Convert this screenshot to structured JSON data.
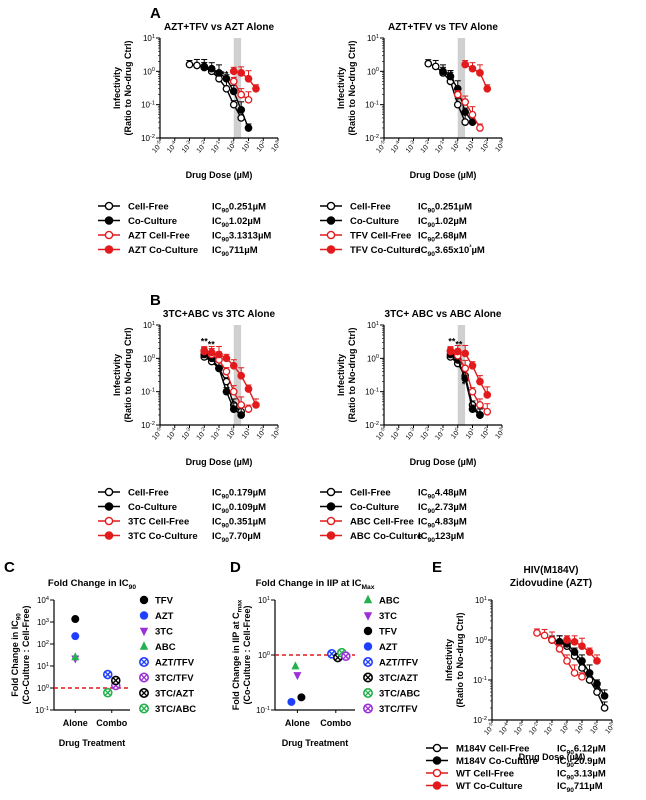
{
  "figure": {
    "panels": {
      "A": {
        "letter": "A",
        "left_title": "AZT+TFV vs AZT Alone",
        "right_title": "AZT+TFV vs TFV Alone"
      },
      "B": {
        "letter": "B",
        "left_title": "3TC+ABC vs 3TC Alone",
        "right_title": "3TC+ ABC vs ABC Alone"
      },
      "C": {
        "letter": "C",
        "title": "Fold Change in IC90"
      },
      "D": {
        "letter": "D",
        "title": "Fold Change in IIP at ICMax"
      },
      "E": {
        "letter": "E",
        "title_line1": "HIV(M184V)",
        "title_line2": "Zidovudine (AZT)"
      }
    }
  },
  "chart_data": [
    {
      "id": "A-left",
      "type": "line",
      "title": "AZT+TFV vs AZT Alone",
      "xlabel": "Drug Dose (µM)",
      "ylabel": "Infectivity (Ratio to No-drug Ctrl)",
      "xscale": "log",
      "yscale": "log",
      "xlim": [
        1e-05,
        1000
      ],
      "ylim": [
        0.01,
        10
      ],
      "shaded_x": [
        1,
        3.16
      ],
      "annotations": [
        {
          "text": "**",
          "x": 0.25,
          "y": 0.5
        }
      ],
      "series": [
        {
          "name": "Cell-Free",
          "color": "#000000",
          "filled": false,
          "ic90": "0.251µM",
          "x": [
            0.001,
            0.0032,
            0.01,
            0.032,
            0.1,
            0.32,
            1.0,
            3.2
          ],
          "y": [
            1.6,
            1.5,
            1.3,
            1.0,
            0.6,
            0.3,
            0.1,
            0.04
          ]
        },
        {
          "name": "Co-Culture",
          "color": "#000000",
          "filled": true,
          "ic90": "1.02µM",
          "x": [
            0.01,
            0.032,
            0.1,
            0.32,
            1.0,
            3.2,
            10
          ],
          "y": [
            1.4,
            1.2,
            0.9,
            0.6,
            0.25,
            0.07,
            0.02
          ]
        },
        {
          "name": "AZT Cell-Free",
          "color": "#e31a1c",
          "filled": false,
          "ic90": "3.1313µM",
          "x": [
            1.0,
            3.2,
            10
          ],
          "y": [
            0.5,
            0.2,
            0.14
          ]
        },
        {
          "name": "AZT Co-Culture",
          "color": "#e31a1c",
          "filled": true,
          "ic90": "711µM",
          "x": [
            1.0,
            3.2,
            10,
            32
          ],
          "y": [
            1.0,
            0.9,
            0.6,
            0.3
          ]
        }
      ]
    },
    {
      "id": "A-right",
      "type": "line",
      "title": "AZT+TFV vs TFV Alone",
      "xlabel": "Drug Dose (µM)",
      "ylabel": "Infectivity (Ratio to No-drug Ctrl)",
      "xscale": "log",
      "yscale": "log",
      "xlim": [
        1e-05,
        1000
      ],
      "ylim": [
        0.01,
        10
      ],
      "shaded_x": [
        1,
        3.16
      ],
      "annotations": [
        {
          "text": "**",
          "x": 0.3,
          "y": 0.5
        }
      ],
      "series": [
        {
          "name": "Cell-Free",
          "color": "#000000",
          "filled": false,
          "ic90": "0.251µM",
          "x": [
            0.01,
            0.032,
            0.1,
            0.32,
            1.0,
            3.2
          ],
          "y": [
            1.7,
            1.4,
            0.9,
            0.5,
            0.1,
            0.03
          ]
        },
        {
          "name": "Co-Culture",
          "color": "#000000",
          "filled": true,
          "ic90": "1.02µM",
          "x": [
            0.1,
            0.32,
            1.0,
            3.2,
            10
          ],
          "y": [
            1.0,
            0.7,
            0.3,
            0.06,
            0.03
          ]
        },
        {
          "name": "TFV Cell-Free",
          "color": "#e31a1c",
          "filled": false,
          "ic90": "2.68µM",
          "x": [
            1.0,
            3.2,
            10,
            32
          ],
          "y": [
            0.2,
            0.12,
            0.05,
            0.02
          ]
        },
        {
          "name": "TFV Co-Culture",
          "color": "#e31a1c",
          "filled": true,
          "ic90": "3.65x10³µM",
          "x": [
            3.2,
            10,
            32,
            100
          ],
          "y": [
            1.6,
            1.2,
            0.9,
            0.3
          ]
        }
      ]
    },
    {
      "id": "B-left",
      "type": "line",
      "title": "3TC+ABC vs 3TC Alone",
      "xlabel": "Drug Dose (µM)",
      "ylabel": "Infectivity (Ratio to No-drug Ctrl)",
      "xscale": "log",
      "yscale": "log",
      "xlim": [
        1e-05,
        1000
      ],
      "ylim": [
        0.01,
        10
      ],
      "shaded_x": [
        1,
        3.16
      ],
      "annotations": [
        {
          "text": "**",
          "x": 0.01,
          "y": 2.0
        },
        {
          "text": "**",
          "x": 0.03,
          "y": 1.6
        }
      ],
      "series": [
        {
          "name": "Cell-Free",
          "color": "#000000",
          "filled": false,
          "ic90": "0.179µM",
          "x": [
            0.01,
            0.032,
            0.1,
            0.32,
            1.0,
            3.2
          ],
          "y": [
            1.1,
            0.8,
            0.5,
            0.2,
            0.04,
            0.025
          ]
        },
        {
          "name": "Co-Culture",
          "color": "#000000",
          "filled": true,
          "ic90": "0.109µM",
          "x": [
            0.01,
            0.032,
            0.1,
            0.32,
            1.0,
            3.2
          ],
          "y": [
            1.3,
            1.0,
            0.5,
            0.1,
            0.03,
            0.02
          ]
        },
        {
          "name": "3TC Cell-Free",
          "color": "#e31a1c",
          "filled": false,
          "ic90": "0.351µM",
          "x": [
            0.01,
            0.032,
            0.1,
            0.32,
            1.0,
            3.2,
            10
          ],
          "y": [
            1.6,
            1.3,
            0.9,
            0.4,
            0.1,
            0.04,
            0.03
          ]
        },
        {
          "name": "3TC Co-Culture",
          "color": "#e31a1c",
          "filled": true,
          "ic90": "7.70µM",
          "x": [
            0.01,
            0.032,
            0.1,
            0.32,
            1.0,
            3.2,
            10,
            32
          ],
          "y": [
            1.7,
            1.5,
            1.3,
            1.0,
            0.6,
            0.3,
            0.12,
            0.04
          ]
        }
      ]
    },
    {
      "id": "B-right",
      "type": "line",
      "title": "3TC+ ABC vs ABC Alone",
      "xlabel": "Drug Dose (µM)",
      "ylabel": "Infectivity (Ratio to No-drug Ctrl)",
      "xscale": "log",
      "yscale": "log",
      "xlim": [
        1e-05,
        1000
      ],
      "ylim": [
        0.01,
        10
      ],
      "shaded_x": [
        1,
        3.16
      ],
      "annotations": [
        {
          "text": "**",
          "x": 0.4,
          "y": 2.0
        },
        {
          "text": "**",
          "x": 1.2,
          "y": 1.6
        },
        {
          "text": "*",
          "x": 2.5,
          "y": 0.1
        }
      ],
      "series": [
        {
          "name": "Cell-Free",
          "color": "#000000",
          "filled": false,
          "ic90": "4.48µM",
          "x": [
            0.32,
            1.0,
            3.2,
            10,
            32
          ],
          "y": [
            1.1,
            0.7,
            0.3,
            0.04,
            0.02
          ]
        },
        {
          "name": "Co-Culture",
          "color": "#000000",
          "filled": true,
          "ic90": "2.73µM",
          "x": [
            0.32,
            1.0,
            3.2,
            10,
            32
          ],
          "y": [
            1.3,
            0.9,
            0.25,
            0.03,
            0.02
          ]
        },
        {
          "name": "ABC Cell-Free",
          "color": "#e31a1c",
          "filled": false,
          "ic90": "4.83µM",
          "x": [
            0.32,
            1.0,
            3.2,
            10,
            32,
            100
          ],
          "y": [
            1.6,
            1.2,
            0.5,
            0.1,
            0.04,
            0.025
          ]
        },
        {
          "name": "ABC Co-Culture",
          "color": "#e31a1c",
          "filled": true,
          "ic90": "123µM",
          "x": [
            0.32,
            1.0,
            3.2,
            10,
            32,
            100
          ],
          "y": [
            1.7,
            1.6,
            1.4,
            0.6,
            0.2,
            0.08
          ]
        }
      ]
    },
    {
      "id": "C",
      "type": "scatter",
      "title": "Fold Change in IC90",
      "xlabel": "Drug Treatment",
      "ylabel": "Fold Change in IC90 (Co-Culture : Cell-Free)",
      "yscale": "log",
      "ylim": [
        0.1,
        10000
      ],
      "categories": [
        "Alone",
        "Combo"
      ],
      "reference_line": 1,
      "points": [
        {
          "name": "TFV",
          "category": "Alone",
          "value": 1360,
          "color": "#000000",
          "marker": "circle"
        },
        {
          "name": "AZT",
          "category": "Alone",
          "value": 227,
          "color": "#1f3fff",
          "marker": "circle"
        },
        {
          "name": "3TC",
          "category": "Alone",
          "value": 22,
          "color": "#9b30d9",
          "marker": "triangle-down"
        },
        {
          "name": "ABC",
          "category": "Alone",
          "value": 25,
          "color": "#22b14c",
          "marker": "triangle-up"
        },
        {
          "name": "AZT/TFV",
          "category": "Combo",
          "value": 4.1,
          "color": "#1f3fff",
          "marker": "crossed-circle"
        },
        {
          "name": "3TC/TFV",
          "category": "Combo",
          "value": 1.3,
          "color": "#9b30d9",
          "marker": "crossed-circle"
        },
        {
          "name": "3TC/AZT",
          "category": "Combo",
          "value": 2.2,
          "color": "#000000",
          "marker": "crossed-circle"
        },
        {
          "name": "3TC/ABC",
          "category": "Combo",
          "value": 0.61,
          "color": "#22b14c",
          "marker": "crossed-circle"
        }
      ]
    },
    {
      "id": "D",
      "type": "scatter",
      "title": "Fold Change in IIP at ICMax",
      "xlabel": "Drug Treatment",
      "ylabel": "Fold Change in IIP at Cmax (Co-Culture : Cell-Free)",
      "yscale": "log",
      "ylim": [
        0.1,
        10
      ],
      "categories": [
        "Alone",
        "Combo"
      ],
      "reference_line": 1,
      "points": [
        {
          "name": "ABC",
          "category": "Alone",
          "value": 0.62,
          "color": "#22b14c",
          "marker": "triangle-up"
        },
        {
          "name": "3TC",
          "category": "Alone",
          "value": 0.43,
          "color": "#9b30d9",
          "marker": "triangle-down"
        },
        {
          "name": "TFV",
          "category": "Alone",
          "value": 0.17,
          "color": "#000000",
          "marker": "circle"
        },
        {
          "name": "AZT",
          "category": "Alone",
          "value": 0.14,
          "color": "#1f3fff",
          "marker": "circle"
        },
        {
          "name": "AZT/TFV",
          "category": "Combo",
          "value": 1.05,
          "color": "#1f3fff",
          "marker": "crossed-circle"
        },
        {
          "name": "3TC/AZT",
          "category": "Combo",
          "value": 0.9,
          "color": "#000000",
          "marker": "crossed-circle"
        },
        {
          "name": "3TC/ABC",
          "category": "Combo",
          "value": 1.1,
          "color": "#22b14c",
          "marker": "crossed-circle"
        },
        {
          "name": "3TC/TFV",
          "category": "Combo",
          "value": 0.95,
          "color": "#9b30d9",
          "marker": "crossed-circle"
        }
      ]
    },
    {
      "id": "E",
      "type": "line",
      "title": "HIV(M184V) Zidovudine (AZT)",
      "xlabel": "Drug Dose (µM)",
      "ylabel": "Infectivity (Ratio to No-drug Ctrl)",
      "xscale": "log",
      "yscale": "log",
      "xlim": [
        1e-05,
        1000
      ],
      "ylim": [
        0.01,
        10
      ],
      "series": [
        {
          "name": "M184V Cell-Free",
          "color": "#000000",
          "filled": false,
          "ic90": "6.12µM",
          "x": [
            0.1,
            0.32,
            1.0,
            3.2,
            10,
            32,
            100,
            320
          ],
          "y": [
            1.0,
            0.9,
            0.7,
            0.4,
            0.2,
            0.1,
            0.05,
            0.02
          ]
        },
        {
          "name": "M184V Co-Culture",
          "color": "#000000",
          "filled": true,
          "ic90": "20.9µM",
          "x": [
            0.1,
            0.32,
            1.0,
            3.2,
            10,
            32,
            100,
            320
          ],
          "y": [
            1.0,
            0.9,
            0.8,
            0.5,
            0.3,
            0.15,
            0.08,
            0.04
          ]
        },
        {
          "name": "WT Cell-Free",
          "color": "#e31a1c",
          "filled": false,
          "ic90": "3.13µM",
          "x": [
            0.01,
            0.032,
            0.1,
            0.32,
            1.0,
            3.2,
            10
          ],
          "y": [
            1.5,
            1.3,
            1.0,
            0.6,
            0.3,
            0.15,
            0.12
          ]
        },
        {
          "name": "WT Co-Culture",
          "color": "#e31a1c",
          "filled": true,
          "ic90": "711µM",
          "x": [
            1.0,
            3.2,
            10,
            32,
            100
          ],
          "y": [
            1.0,
            0.9,
            0.7,
            0.5,
            0.3
          ]
        }
      ]
    }
  ]
}
